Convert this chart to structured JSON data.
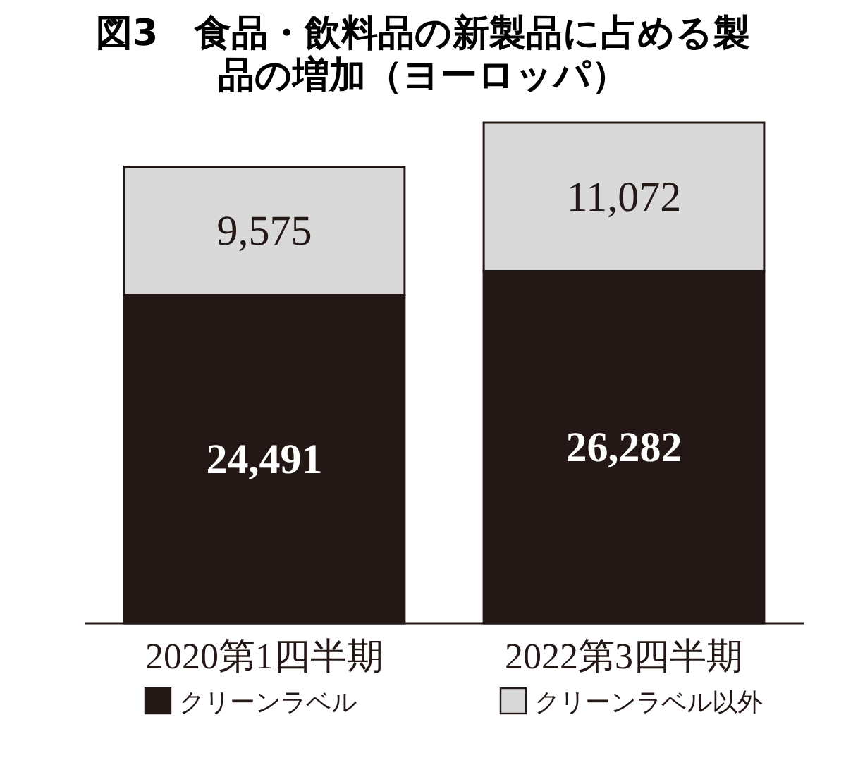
{
  "chart_data": {
    "type": "bar",
    "title": "図3　食品・飲料品の新製品に占める製品の増加（ヨーロッパ）",
    "stacked": true,
    "legend": "bottom",
    "categories": [
      "2020第1四半期",
      "2022第3四半期"
    ],
    "series": [
      {
        "name": "クリーンラベル",
        "color": "#231815",
        "values": [
          24491,
          26282
        ],
        "value_labels": [
          "24,491",
          "26,282"
        ]
      },
      {
        "name": "クリーンラベル以外",
        "color": "#d9d9d9",
        "values": [
          9575,
          11072
        ],
        "value_labels": [
          "9,575",
          "11,072"
        ]
      }
    ]
  }
}
